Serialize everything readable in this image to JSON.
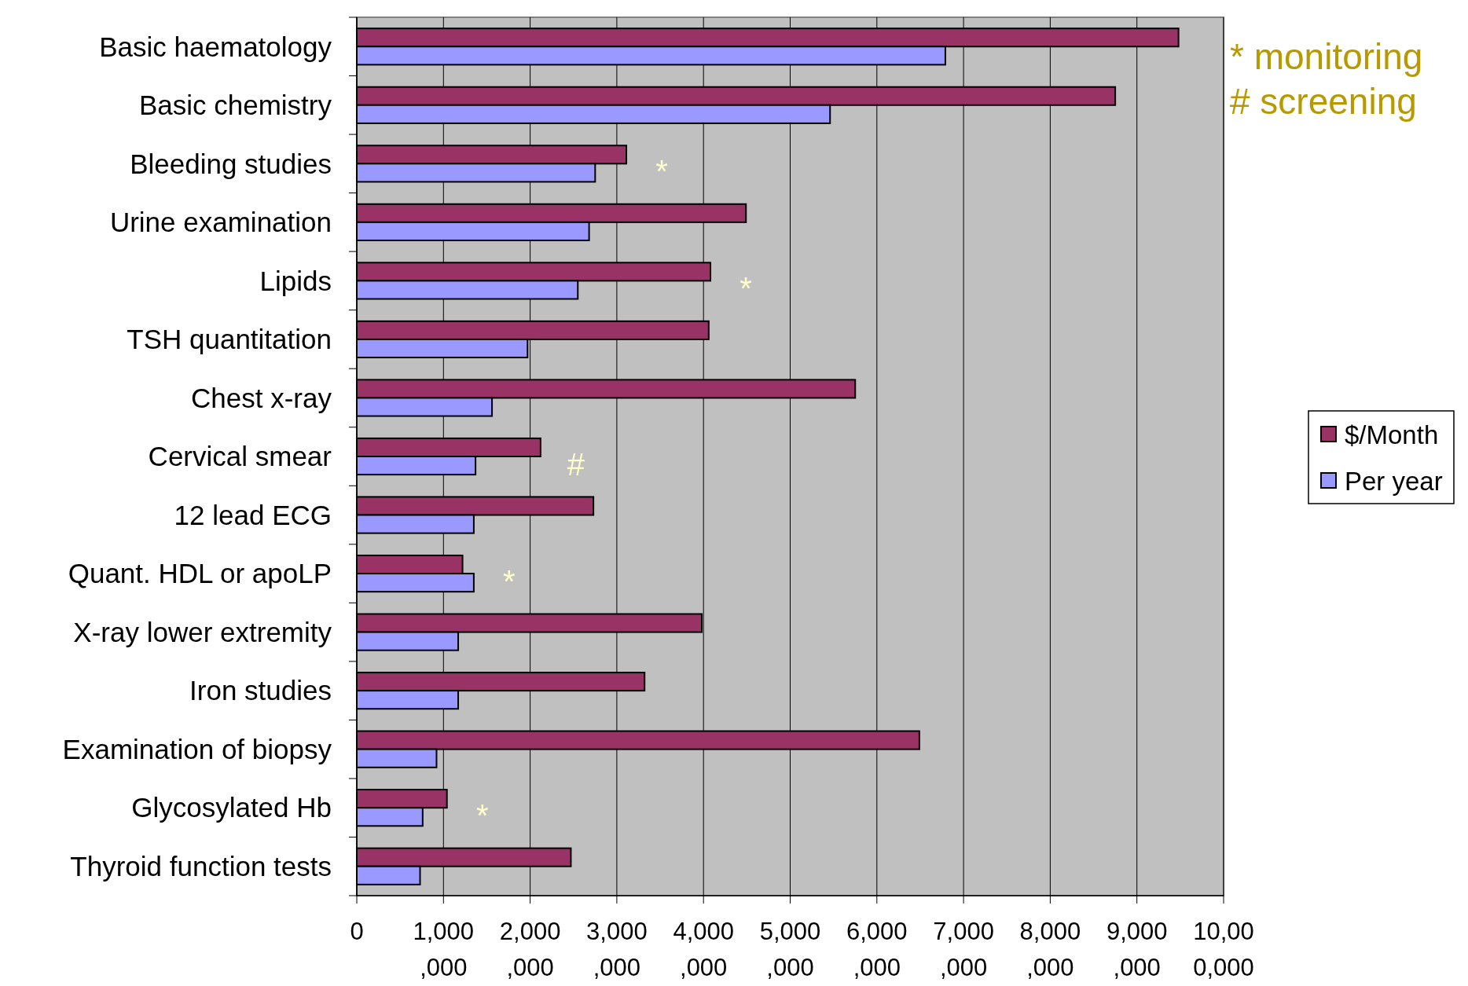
{
  "chart_data": {
    "type": "bar",
    "orientation": "horizontal",
    "categories": [
      "Basic haematology",
      "Basic chemistry",
      "Bleeding studies",
      "Urine examination",
      "Lipids",
      "TSH quantitation",
      "Chest x-ray",
      "Cervical smear",
      "12 lead ECG",
      "Quant. HDL or apoLP",
      "X-ray lower extremity",
      "Iron studies",
      "Examination of biopsy",
      "Glycosylated Hb",
      "Thyroid function tests"
    ],
    "series": [
      {
        "name": "$/Month",
        "color": "#993366",
        "values": [
          9480000,
          8750000,
          3110000,
          4490000,
          4080000,
          4060000,
          5750000,
          2120000,
          2730000,
          1220000,
          3980000,
          3320000,
          6490000,
          1040000,
          2470000
        ]
      },
      {
        "name": "Per year",
        "color": "#9999ff",
        "values": [
          6790000,
          5460000,
          2750000,
          2680000,
          2550000,
          1970000,
          1560000,
          1370000,
          1350000,
          1350000,
          1170000,
          1170000,
          920000,
          760000,
          730000
        ]
      }
    ],
    "xlim": [
      0,
      10000000
    ],
    "xticks": [
      0,
      {
        "value": 1000000,
        "label": "1,000,000"
      },
      {
        "value": 2000000,
        "label": "2,000,000"
      },
      {
        "value": 3000000,
        "label": "3,000,000"
      },
      {
        "value": 4000000,
        "label": "4,000,000"
      },
      {
        "value": 5000000,
        "label": "5,000,000"
      },
      {
        "value": 6000000,
        "label": "6,000,000"
      },
      {
        "value": 7000000,
        "label": "7,000,000"
      },
      {
        "value": 8000000,
        "label": "8,000,000"
      },
      {
        "value": 9000000,
        "label": "9,000,000"
      },
      {
        "value": 10000000,
        "label": "10,000,000"
      }
    ],
    "grid": "x",
    "legend": "right",
    "annotations": [
      {
        "text": "*",
        "x": 3110000,
        "y": "Bleeding studies"
      },
      {
        "text": "*",
        "x": 4080000,
        "y": "Lipids"
      },
      {
        "text": "#",
        "x": 2120000,
        "y": "Cervical smear"
      },
      {
        "text": "*",
        "x": 1350000,
        "y": "Quant. HDL or apoLP"
      },
      {
        "text": "*",
        "x": 1040000,
        "y": "Glycosylated Hb"
      },
      "* monitoring",
      "# screening"
    ]
  }
}
